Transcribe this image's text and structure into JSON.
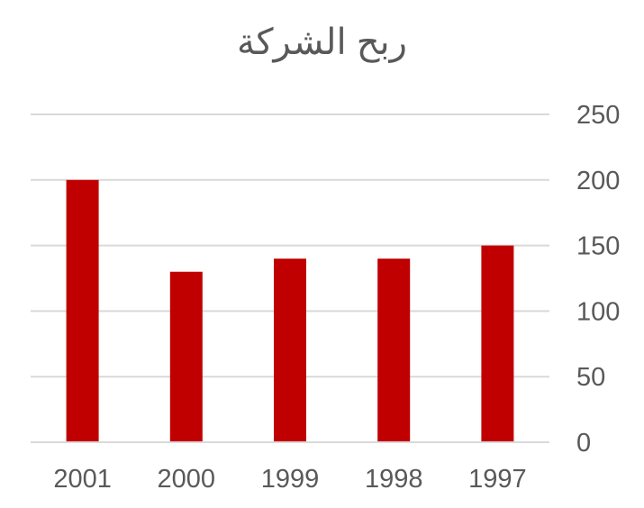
{
  "chart_data": {
    "type": "bar",
    "title": "ربح الشركة",
    "xlabel": "",
    "ylabel": "",
    "categories": [
      "2001",
      "2000",
      "1999",
      "1998",
      "1997"
    ],
    "values": [
      200,
      130,
      140,
      140,
      150
    ],
    "ylim": [
      0,
      250
    ],
    "yticks": [
      "0",
      "50",
      "100",
      "150",
      "200",
      "250"
    ],
    "yaxis_position": "right",
    "grid": true,
    "legend": "none",
    "bar_color": "#C00000",
    "grid_color": "#D9D9D9",
    "text_color": "#595959"
  }
}
